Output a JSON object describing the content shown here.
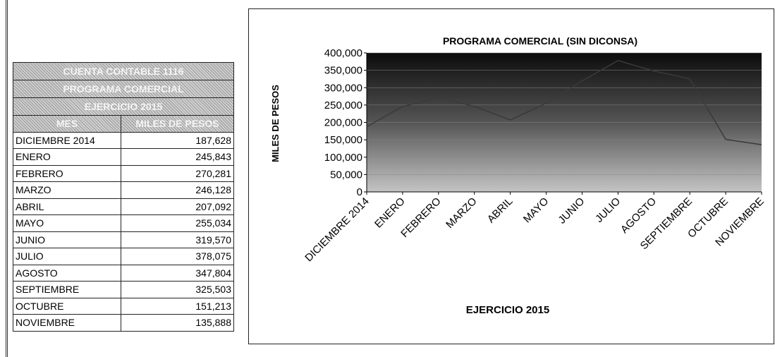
{
  "table": {
    "title_lines": [
      "CUENTA CONTABLE 1116",
      "PROGRAMA COMERCIAL",
      "EJERCICIO 2015"
    ],
    "columns": [
      "MES",
      "MILES DE PESOS"
    ],
    "rows": [
      [
        "DICIEMBRE 2014",
        "187,628"
      ],
      [
        "ENERO",
        "245,843"
      ],
      [
        "FEBRERO",
        "270,281"
      ],
      [
        "MARZO",
        "246,128"
      ],
      [
        "ABRIL",
        "207,092"
      ],
      [
        "MAYO",
        "255,034"
      ],
      [
        "JUNIO",
        "319,570"
      ],
      [
        "JULIO",
        "378,075"
      ],
      [
        "AGOSTO",
        "347,804"
      ],
      [
        "SEPTIEMBRE",
        "325,503"
      ],
      [
        "OCTUBRE",
        "151,213"
      ],
      [
        "NOVIEMBRE",
        "135,888"
      ]
    ]
  },
  "chart_data": {
    "type": "line",
    "title": "PROGRAMA COMERCIAL (SIN DICONSA)",
    "ylabel": "MILES DE PESOS",
    "xlabel": "EJERCICIO 2015",
    "categories": [
      "DICIEMBRE 2014",
      "ENERO",
      "FEBRERO",
      "MARZO",
      "ABRIL",
      "MAYO",
      "JUNIO",
      "JULIO",
      "AGOSTO",
      "SEPTIEMBRE",
      "OCTUBRE",
      "NOVIEMBRE"
    ],
    "values": [
      187628,
      245843,
      270281,
      246128,
      207092,
      255034,
      319570,
      378075,
      347804,
      325503,
      151213,
      135888
    ],
    "color": "#3a3a3a",
    "ylim": [
      0,
      400000
    ],
    "yticks": [
      0,
      {
        "value": 50000,
        "label": "50,000"
      },
      {
        "value": 100000,
        "label": "100,000"
      },
      {
        "value": 150000,
        "label": "150,000"
      },
      {
        "value": 200000,
        "label": "200,000"
      },
      {
        "value": 250000,
        "label": "250,000"
      },
      {
        "value": 300000,
        "label": "300,000"
      },
      {
        "value": 350000,
        "label": "350,000"
      },
      {
        "value": 400000,
        "label": "400,000"
      }
    ],
    "grid": true
  }
}
